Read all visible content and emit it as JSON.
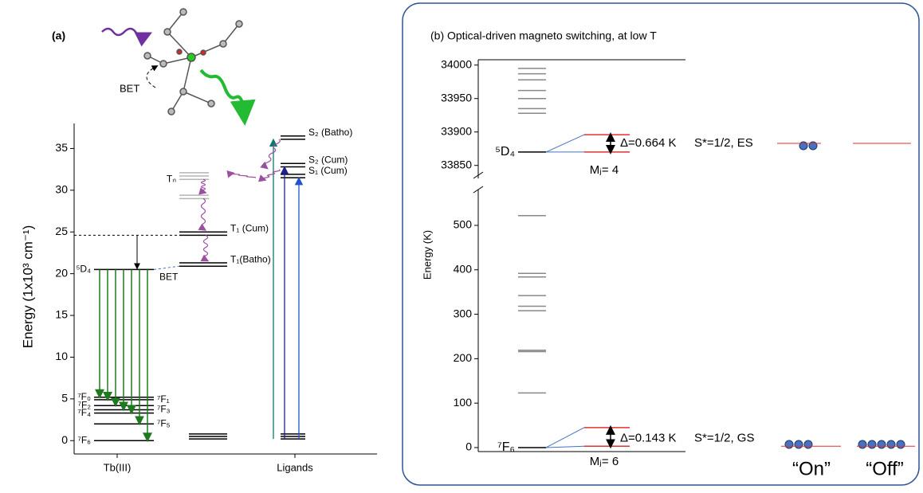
{
  "chart_data": [
    {
      "type": "levels",
      "title": "(a)",
      "ylabel": "Energy (1x10³ cm⁻¹)",
      "molecule_annotation": "BET",
      "transfer_annotation": "BET",
      "ylim": [
        -1.6,
        38
      ],
      "yticks": [
        0,
        5,
        10,
        15,
        20,
        25,
        30,
        35
      ],
      "categories": [
        "Tb(III)",
        "Ligands"
      ],
      "levels": [
        {
          "label": "⁵D₄",
          "values": [
            20.5
          ],
          "color": "#000000"
        },
        {
          "label": "⁷F₀",
          "values": [
            5.2
          ],
          "color": "#000000"
        },
        {
          "label": "⁷F₁",
          "values": [
            4.9
          ],
          "color": "#000000"
        },
        {
          "label": "⁷F₂",
          "values": [
            4.2
          ],
          "color": "#000000"
        },
        {
          "label": "⁷F₃",
          "values": [
            3.7
          ],
          "color": "#000000"
        },
        {
          "label": "⁷F₄",
          "values": [
            3.3
          ],
          "color": "#000000"
        },
        {
          "label": "⁷F₅",
          "values": [
            2.0
          ],
          "color": "#000000"
        },
        {
          "label": "⁷F₆",
          "values": [
            0.0
          ],
          "color": "#000000"
        },
        {
          "values": [
            0.2,
            0.5,
            0.8
          ],
          "color": "#000000"
        },
        {
          "values": [
            0.2,
            0.5,
            0.8
          ],
          "color": "#000000"
        },
        {
          "label": "T₁(Batho)",
          "values": [
            20.9,
            21.3
          ],
          "color": "#000000"
        },
        {
          "label": "T₁ (Cum)",
          "values": [
            24.6,
            25.0
          ],
          "color": "#000000"
        },
        {
          "label": "Tₙ",
          "values": [
            29.0,
            29.4,
            31.3,
            31.7,
            32.1
          ],
          "color": "#b5b5b5"
        },
        {
          "label": "S₁ (Cum)",
          "values": [
            31.5,
            31.9
          ],
          "color": "#000000"
        },
        {
          "label": "S₂ (Cum)",
          "values": [
            32.8,
            33.2
          ],
          "color": "#000000"
        },
        {
          "label": "S₂ (Batho)",
          "values": [
            36.1,
            36.5
          ],
          "color": "#000000"
        }
      ]
    },
    {
      "type": "levels",
      "title": "(b) Optical-driven magneto switching, at low T",
      "ylabel": "Energy (K)",
      "ylim": [
        -9,
        577
      ],
      "yticks": [
        0,
        100,
        200,
        300,
        400,
        500
      ],
      "y2lim": [
        33833,
        34008
      ],
      "y2ticks": [
        33850,
        33900,
        33950,
        34000
      ],
      "levels": [
        {
          "values": [
            33995,
            33987,
            33978,
            33962,
            33950,
            33935,
            33928
          ],
          "color": "#888888",
          "axis": "y2"
        },
        {
          "label": "⁵D₄",
          "values": [
            33870
          ],
          "color": "#000000",
          "axis": "y2"
        },
        {
          "values": [
            33896,
            33870
          ],
          "color": "#e03030",
          "axis": "y2"
        },
        {
          "values": [
            522,
            392,
            384,
            342,
            318,
            308,
            219,
            216,
            123
          ],
          "color": "#888888"
        },
        {
          "label": "⁷F₆",
          "values": [
            0
          ],
          "color": "#000000"
        },
        {
          "values": [
            45,
            3
          ],
          "color": "#e03030"
        }
      ],
      "annotations": [
        "Δ=0.664 K",
        "S*=1/2, ES",
        "Mⱼ= 4",
        "Δ=0.143 K",
        "S*=1/2, GS",
        "Mⱼ= 6",
        "“On”",
        "“Off”"
      ]
    }
  ]
}
